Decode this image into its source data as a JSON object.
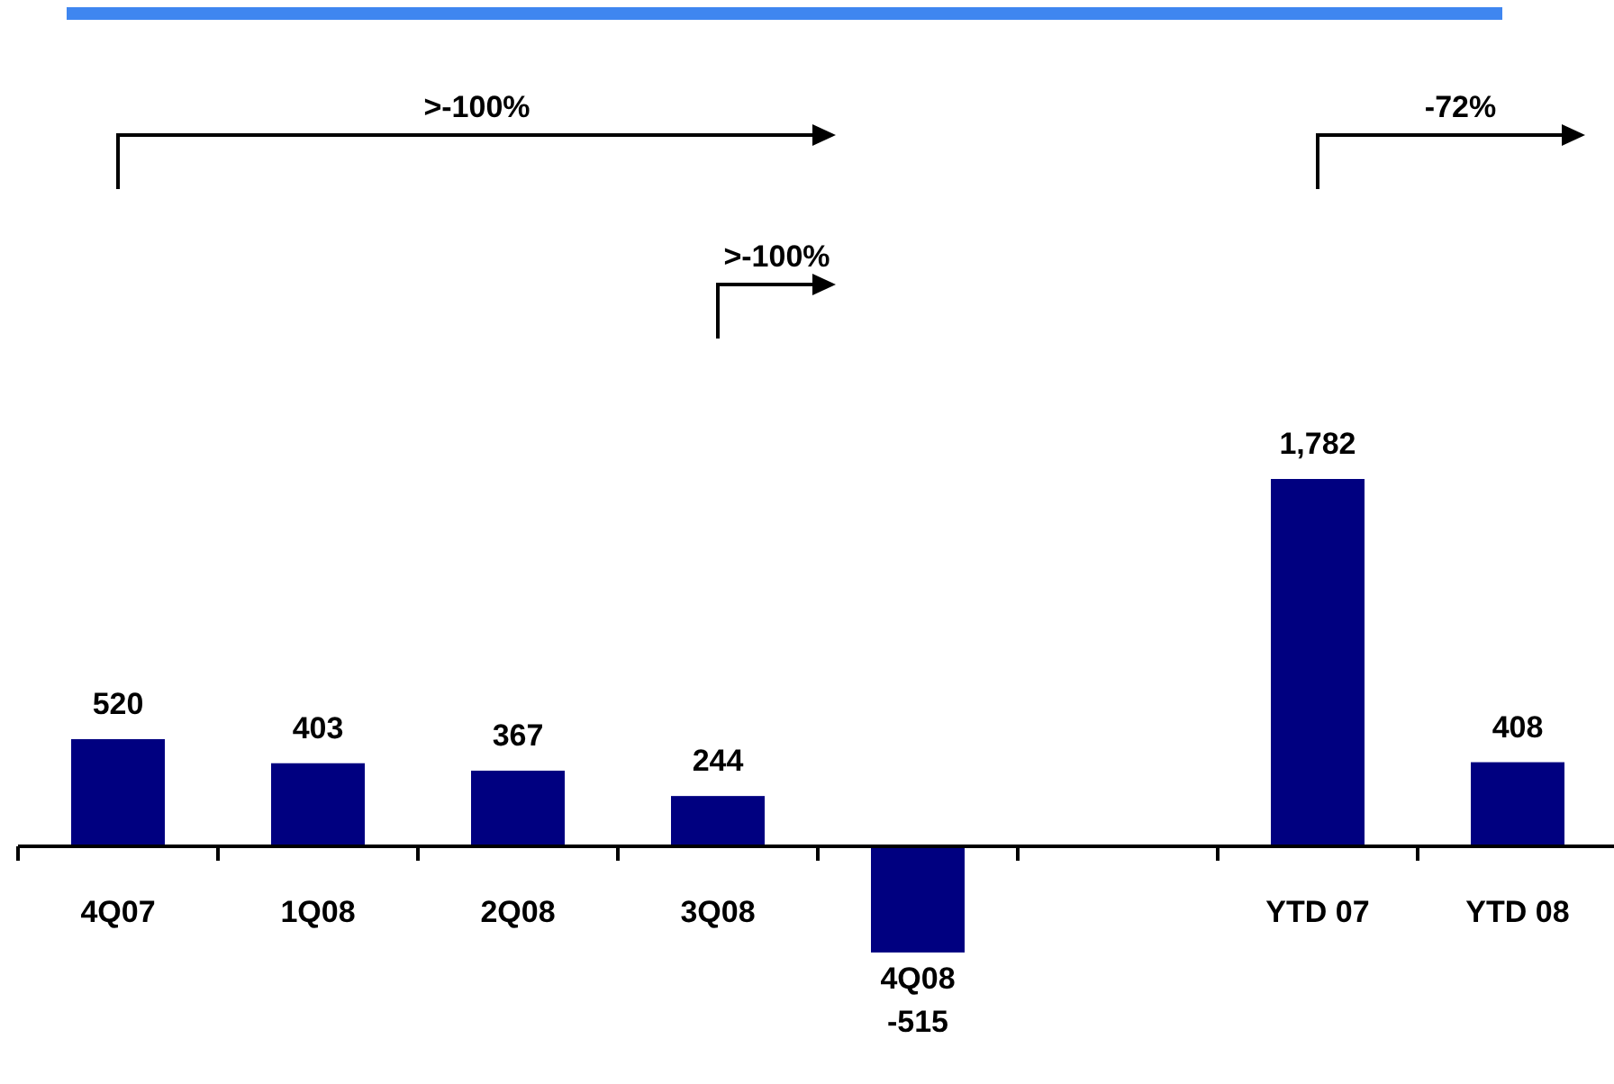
{
  "chart_data": {
    "type": "bar",
    "categories": [
      "4Q07",
      "1Q08",
      "2Q08",
      "3Q08",
      "4Q08",
      null,
      "YTD 07",
      "YTD 08"
    ],
    "values": [
      520,
      403,
      367,
      244,
      -515,
      null,
      1782,
      408
    ],
    "value_labels": [
      "520",
      "403",
      "367",
      "244",
      "-515",
      null,
      "1,782",
      "408"
    ],
    "color": "#000080",
    "annotations": [
      ">-100%",
      ">-100%",
      "-72%"
    ]
  }
}
